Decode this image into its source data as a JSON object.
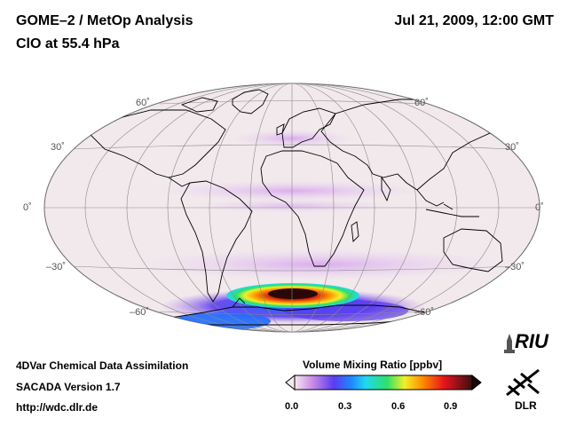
{
  "header": {
    "title": "GOME–2 / MetOp Analysis",
    "subtitle": "ClO at 55.4 hPa",
    "datetime": "Jul 21, 2009, 12:00 GMT"
  },
  "map": {
    "projection": "Hammer-Aitoff",
    "lat_labels": [
      "60˚",
      "30˚",
      "0˚",
      "–30˚",
      "–60˚"
    ],
    "colors": {
      "ocean": "#f2e9ec",
      "border": "#6b6b6b",
      "coast": "#000000"
    }
  },
  "footer": {
    "line1": "4DVar Chemical Data Assimilation",
    "line2": "SACADA Version 1.7",
    "line3": "http://wdc.dlr.de"
  },
  "colorbar": {
    "title": "Volume Mixing Ratio [ppbv]",
    "ticks": [
      "0.0",
      "0.3",
      "0.6",
      "0.9"
    ],
    "colors": [
      "#f6e9f1",
      "#c98be6",
      "#5a3cf0",
      "#1e88ff",
      "#21d9f0",
      "#2ee06a",
      "#f2f028",
      "#ff8c00",
      "#e8141e",
      "#3a1010"
    ]
  },
  "logos": {
    "riu": "RIU",
    "dlr": "DLR"
  }
}
